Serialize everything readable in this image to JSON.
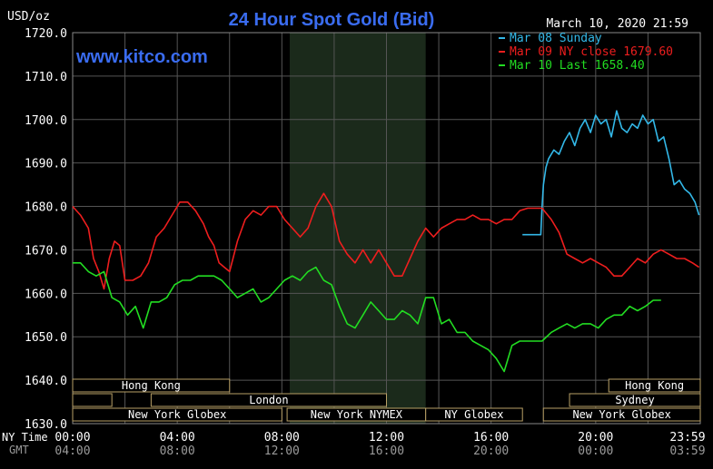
{
  "header": {
    "title": "24 Hour Spot Gold (Bid)",
    "units": "USD/oz",
    "timestamp": "March 10, 2020 21:59",
    "watermark": "www.kitco.com"
  },
  "axis_labels": {
    "ny_time": "NY Time",
    "gmt": "GMT"
  },
  "colors": {
    "background": "#000000",
    "grid": "#555555",
    "axis_text": "#ffffff",
    "title": "#3a6cf0",
    "watermark": "#3a6cf0",
    "session_box": "#b8a066",
    "session_text": "#ffffff",
    "nymex_shade": "#1b2a1b",
    "tick_label_gmt": "#9a9a9a"
  },
  "sessions": [
    {
      "label": "Hong Kong",
      "row": 1,
      "start": 0,
      "end": 6
    },
    {
      "label": "",
      "row": 2,
      "start": 0,
      "end": 1.5
    },
    {
      "label": "London",
      "row": 2,
      "start": 3,
      "end": 12
    },
    {
      "label": "New York Globex",
      "row": 3,
      "start": 0,
      "end": 8
    },
    {
      "label": "New York NYMEX",
      "row": 3,
      "start": 8.2,
      "end": 13.5
    },
    {
      "label": "NY Globex",
      "row": 3,
      "start": 13.5,
      "end": 17.2
    },
    {
      "label": "Hong Kong",
      "row": 1,
      "start": 20.5,
      "end": 24
    },
    {
      "label": "Sydney",
      "row": 2,
      "start": 19,
      "end": 24
    },
    {
      "label": "New York Globex",
      "row": 3,
      "start": 18,
      "end": 24
    }
  ],
  "chart_data": {
    "type": "line",
    "title": "24 Hour Spot Gold (Bid)",
    "ylabel": "USD/oz",
    "ylim": [
      1630,
      1720
    ],
    "yticks": [
      1630,
      1640,
      1650,
      1660,
      1670,
      1680,
      1690,
      1700,
      1710,
      1720
    ],
    "ytick_labels": [
      "1630.0",
      "1640.0",
      "1650.0",
      "1660.0",
      "1670.0",
      "1680.0",
      "1690.0",
      "1700.0",
      "1710.0",
      "1720.0"
    ],
    "xlim": [
      0,
      24
    ],
    "xticks": [
      0,
      4,
      8,
      12,
      16,
      20,
      24
    ],
    "xtick_labels_ny": [
      "00:00",
      "04:00",
      "08:00",
      "12:00",
      "16:00",
      "20:00",
      "23:59"
    ],
    "xtick_labels_gmt": [
      "04:00",
      "08:00",
      "12:00",
      "16:00",
      "20:00",
      "00:00",
      "03:59"
    ],
    "nymex_shade": [
      8.3,
      13.5
    ],
    "grid": true,
    "legend_position": "top-right",
    "series": [
      {
        "name": "Mar 08 Sunday",
        "legend": "Mar 08 Sunday",
        "color": "#33b8e8",
        "x": [
          17.2,
          17.9,
          17.95,
          18.0,
          18.1,
          18.2,
          18.4,
          18.6,
          18.8,
          19.0,
          19.2,
          19.4,
          19.6,
          19.8,
          20.0,
          20.2,
          20.4,
          20.6,
          20.8,
          21.0,
          21.2,
          21.4,
          21.6,
          21.8,
          22.0,
          22.2,
          22.4,
          22.6,
          22.8,
          23.0,
          23.2,
          23.4,
          23.6,
          23.8,
          23.95
        ],
        "y": [
          1673.5,
          1673.5,
          1680,
          1685,
          1689,
          1691,
          1693,
          1692,
          1695,
          1697,
          1694,
          1698,
          1700,
          1697,
          1701,
          1699,
          1700,
          1696,
          1702,
          1698,
          1697,
          1699,
          1698,
          1701,
          1699,
          1700,
          1695,
          1696,
          1691,
          1685,
          1686,
          1684,
          1683,
          1681,
          1678
        ]
      },
      {
        "name": "Mar 09 NY close",
        "legend": "Mar 09 NY close 1679.60",
        "color": "#ee1e1e",
        "x": [
          0,
          0.3,
          0.6,
          0.8,
          1.0,
          1.2,
          1.4,
          1.6,
          1.8,
          2.0,
          2.3,
          2.6,
          2.9,
          3.2,
          3.5,
          3.8,
          4.1,
          4.4,
          4.7,
          5.0,
          5.2,
          5.4,
          5.6,
          5.8,
          6.0,
          6.3,
          6.6,
          6.9,
          7.2,
          7.5,
          7.8,
          8.1,
          8.4,
          8.7,
          9.0,
          9.3,
          9.6,
          9.9,
          10.2,
          10.5,
          10.8,
          11.1,
          11.4,
          11.7,
          12.0,
          12.3,
          12.6,
          12.9,
          13.2,
          13.5,
          13.8,
          14.1,
          14.4,
          14.7,
          15.0,
          15.3,
          15.6,
          15.9,
          16.2,
          16.5,
          16.8,
          17.1,
          17.4,
          17.7,
          17.95,
          18.3,
          18.6,
          18.9,
          19.2,
          19.5,
          19.8,
          20.1,
          20.4,
          20.7,
          21.0,
          21.3,
          21.6,
          21.9,
          22.2,
          22.5,
          22.8,
          23.1,
          23.4,
          23.7,
          23.95
        ],
        "y": [
          1680,
          1678,
          1675,
          1668,
          1665,
          1661,
          1668,
          1672,
          1671,
          1663,
          1663,
          1664,
          1667,
          1673,
          1675,
          1678,
          1681,
          1681,
          1679,
          1676,
          1673,
          1671,
          1667,
          1666,
          1665,
          1672,
          1677,
          1679,
          1678,
          1680,
          1680,
          1677,
          1675,
          1673,
          1675,
          1680,
          1683,
          1680,
          1672,
          1669,
          1667,
          1670,
          1667,
          1670,
          1667,
          1664,
          1664,
          1668,
          1672,
          1675,
          1673,
          1675,
          1676,
          1677,
          1677,
          1678,
          1677,
          1677,
          1676,
          1677,
          1677,
          1679,
          1679.6,
          1679.6,
          1679.6,
          1677,
          1674,
          1669,
          1668,
          1667,
          1668,
          1667,
          1666,
          1664,
          1664,
          1666,
          1668,
          1667,
          1669,
          1670,
          1669,
          1668,
          1668,
          1667,
          1666
        ]
      },
      {
        "name": "Mar 10 Last",
        "legend": "Mar 10 Last 1658.40",
        "color": "#22dd22",
        "x": [
          0,
          0.3,
          0.6,
          0.9,
          1.2,
          1.5,
          1.8,
          2.1,
          2.4,
          2.7,
          3.0,
          3.3,
          3.6,
          3.9,
          4.2,
          4.5,
          4.8,
          5.1,
          5.4,
          5.7,
          6.0,
          6.3,
          6.6,
          6.9,
          7.2,
          7.5,
          7.8,
          8.1,
          8.4,
          8.7,
          9.0,
          9.3,
          9.6,
          9.9,
          10.2,
          10.5,
          10.8,
          11.1,
          11.4,
          11.7,
          12.0,
          12.3,
          12.6,
          12.9,
          13.2,
          13.5,
          13.8,
          14.1,
          14.4,
          14.7,
          15.0,
          15.3,
          15.6,
          15.9,
          16.2,
          16.5,
          16.8,
          17.1,
          17.4,
          17.7,
          17.95,
          18.3,
          18.6,
          18.9,
          19.2,
          19.5,
          19.8,
          20.1,
          20.4,
          20.7,
          21.0,
          21.3,
          21.6,
          21.9,
          22.2,
          22.5
        ],
        "y": [
          1667,
          1667,
          1665,
          1664,
          1665,
          1659,
          1658,
          1655,
          1657,
          1652,
          1658,
          1658,
          1659,
          1662,
          1663,
          1663,
          1664,
          1664,
          1664,
          1663,
          1661,
          1659,
          1660,
          1661,
          1658,
          1659,
          1661,
          1663,
          1664,
          1663,
          1665,
          1666,
          1663,
          1662,
          1657,
          1653,
          1652,
          1655,
          1658,
          1656,
          1654,
          1654,
          1656,
          1655,
          1653,
          1659,
          1659,
          1653,
          1654,
          1651,
          1651,
          1649,
          1648,
          1647,
          1645,
          1642,
          1648,
          1649,
          1649,
          1649,
          1649,
          1651,
          1652,
          1653,
          1652,
          1653,
          1653,
          1652,
          1654,
          1655,
          1655,
          1657,
          1656,
          1657,
          1658.4,
          1658.4
        ]
      }
    ]
  }
}
